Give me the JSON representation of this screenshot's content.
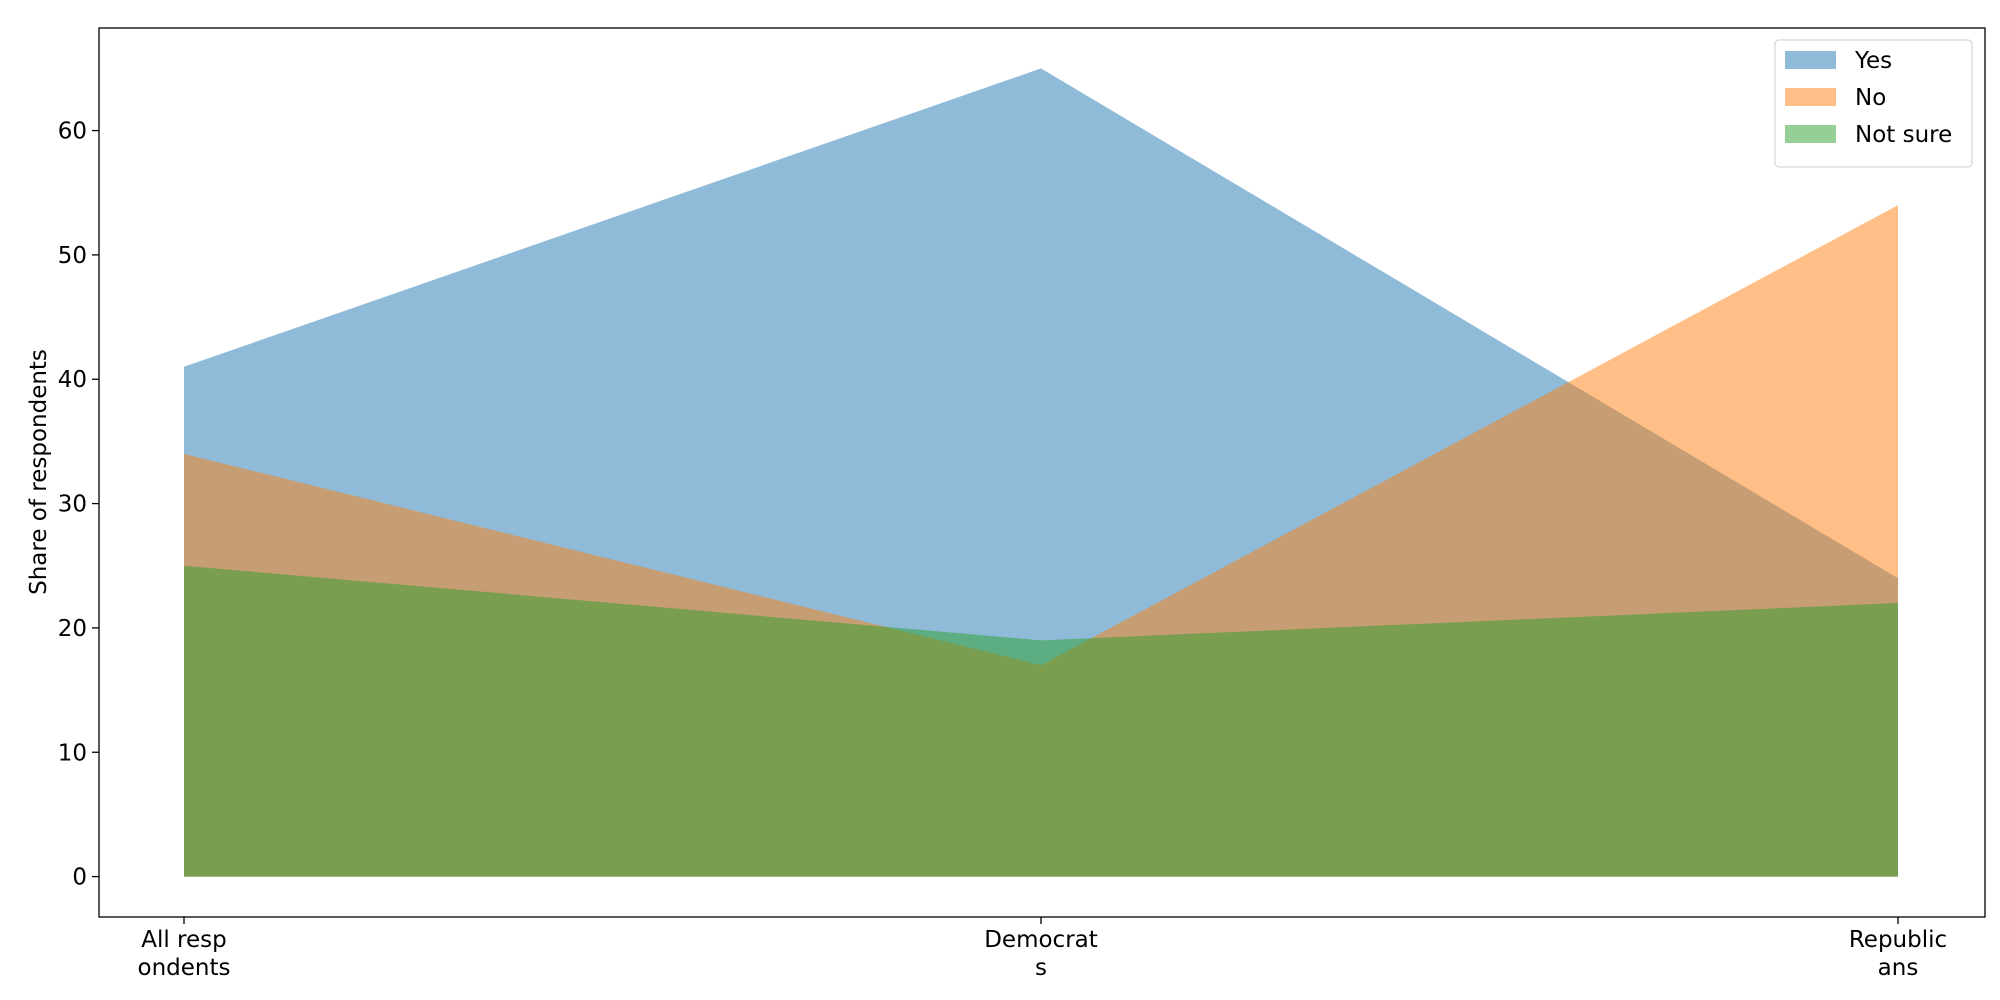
{
  "chart_data": {
    "type": "area",
    "categories": [
      "All resp\nondents",
      "Democrat\ns",
      "Republic\nans"
    ],
    "series": [
      {
        "name": "Yes",
        "values": [
          41,
          65,
          24
        ],
        "color": "#1f77b4"
      },
      {
        "name": "No",
        "values": [
          34,
          17,
          54
        ],
        "color": "#ff7f0e"
      },
      {
        "name": "Not sure",
        "values": [
          25,
          19,
          22
        ],
        "color": "#2ca02c"
      }
    ],
    "ylabel": "Share of respondents",
    "xlabel": "",
    "ylim": [
      -3.25,
      68.25
    ],
    "yticks": [
      0,
      10,
      20,
      30,
      40,
      50,
      60
    ],
    "alpha": 0.5,
    "legend": "top-right",
    "grid": false
  }
}
